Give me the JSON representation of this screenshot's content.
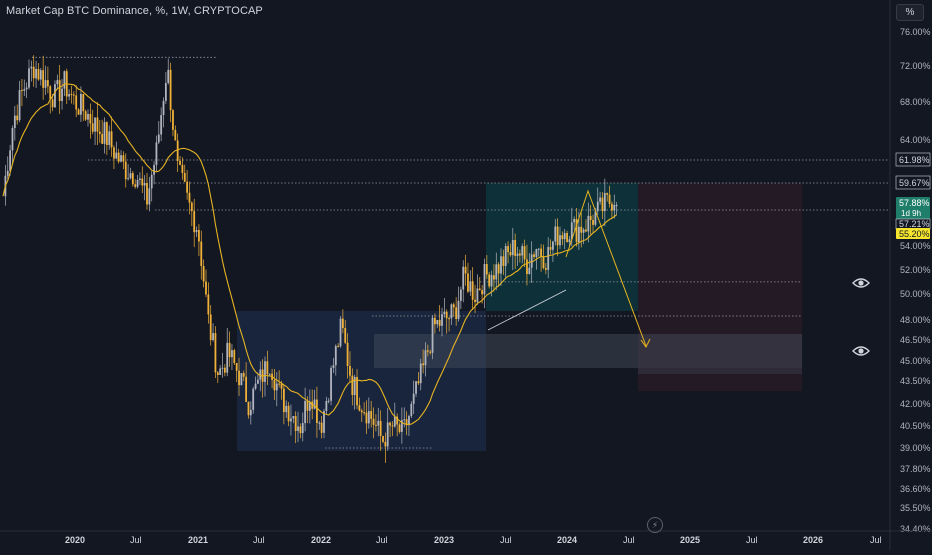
{
  "header": {
    "title": "Market Cap BTC Dominance, %, 1W, CRYPTOCAP",
    "scale_button": "%"
  },
  "colors": {
    "background": "#131722",
    "up": "#b2b5be",
    "down": "#f0b138",
    "ma": "#e6b422",
    "grid_text": "#b2b5be",
    "price_green": "#1e7e6a",
    "price_yellow": "#f5e52c"
  },
  "price_axis": {
    "ticks": [
      "76.00%",
      "72.00%",
      "68.00%",
      "64.00%",
      "61.98%",
      "59.67%",
      "57.88%",
      "57.21%",
      "55.20%",
      "54.00%",
      "52.00%",
      "50.00%",
      "48.00%",
      "46.50%",
      "45.00%",
      "43.50%",
      "42.00%",
      "40.50%",
      "39.00%",
      "37.80%",
      "36.60%",
      "35.50%",
      "34.40%"
    ],
    "scale": "log"
  },
  "time_axis": {
    "labels": [
      "2020",
      "Jul",
      "2021",
      "Jul",
      "2022",
      "Jul",
      "2023",
      "Jul",
      "2024",
      "Jul",
      "2025",
      "Jul",
      "2026",
      "Jul"
    ]
  },
  "price_labels": {
    "level_6198": "61.98%",
    "level_5967": "59.67%",
    "last_price": "57.88%",
    "countdown": "1d 9h",
    "level_5721": "57.21%",
    "ma_value": "55.20%"
  },
  "chart_data": {
    "type": "candlestick",
    "title": "Market Cap BTC Dominance, %, 1W, CRYPTOCAP",
    "xlabel": "",
    "ylabel": "",
    "ylim": [
      34.4,
      76.0
    ],
    "y_scale": "log",
    "x": [
      "2019-10",
      "2019-11",
      "2019-12",
      "2020-01",
      "2020-02",
      "2020-03",
      "2020-04",
      "2020-05",
      "2020-06",
      "2020-07",
      "2020-08",
      "2020-09",
      "2020-10",
      "2020-11",
      "2020-12",
      "2021-01",
      "2021-02",
      "2021-03",
      "2021-04",
      "2021-05",
      "2021-06",
      "2021-07",
      "2021-08",
      "2021-09",
      "2021-10",
      "2021-11",
      "2021-12",
      "2022-01",
      "2022-02",
      "2022-03",
      "2022-04",
      "2022-05",
      "2022-06",
      "2022-07",
      "2022-08",
      "2022-09",
      "2022-10",
      "2022-11",
      "2022-12",
      "2023-01",
      "2023-02",
      "2023-03",
      "2023-04",
      "2023-05",
      "2023-06",
      "2023-07",
      "2023-08",
      "2023-09",
      "2023-10",
      "2023-11",
      "2023-12",
      "2024-01",
      "2024-02",
      "2024-03",
      "2024-04",
      "2024-05",
      "2024-06",
      "2024-07",
      "2024-08",
      "2024-09"
    ],
    "series": [
      {
        "values": [
          58.5,
          66.0,
          69.5,
          72.0,
          70.5,
          68.5,
          70.0,
          68.0,
          67.0,
          65.5,
          64.5,
          62.5,
          61.0,
          60.5,
          58.0,
          63.0,
          72.0,
          61.0,
          58.0,
          55.5,
          48.0,
          44.0,
          45.5,
          44.0,
          42.0,
          43.5,
          45.0,
          42.5,
          41.5,
          40.5,
          43.0,
          40.5,
          44.0,
          47.5,
          43.5,
          42.0,
          41.0,
          39.5,
          40.5,
          40.0,
          42.0,
          44.5,
          47.5,
          48.0,
          48.5,
          51.5,
          50.0,
          51.5,
          52.0,
          53.0,
          54.0,
          52.5,
          54.0,
          53.0,
          55.0,
          55.5,
          55.5,
          56.0,
          57.0,
          57.9
        ]
      }
    ],
    "hlines": [
      61.98,
      59.67,
      57.21,
      51.0,
      48.3,
      73.0,
      39.0
    ],
    "annotations": [
      "61.98%",
      "59.67%",
      "57.21%"
    ]
  }
}
